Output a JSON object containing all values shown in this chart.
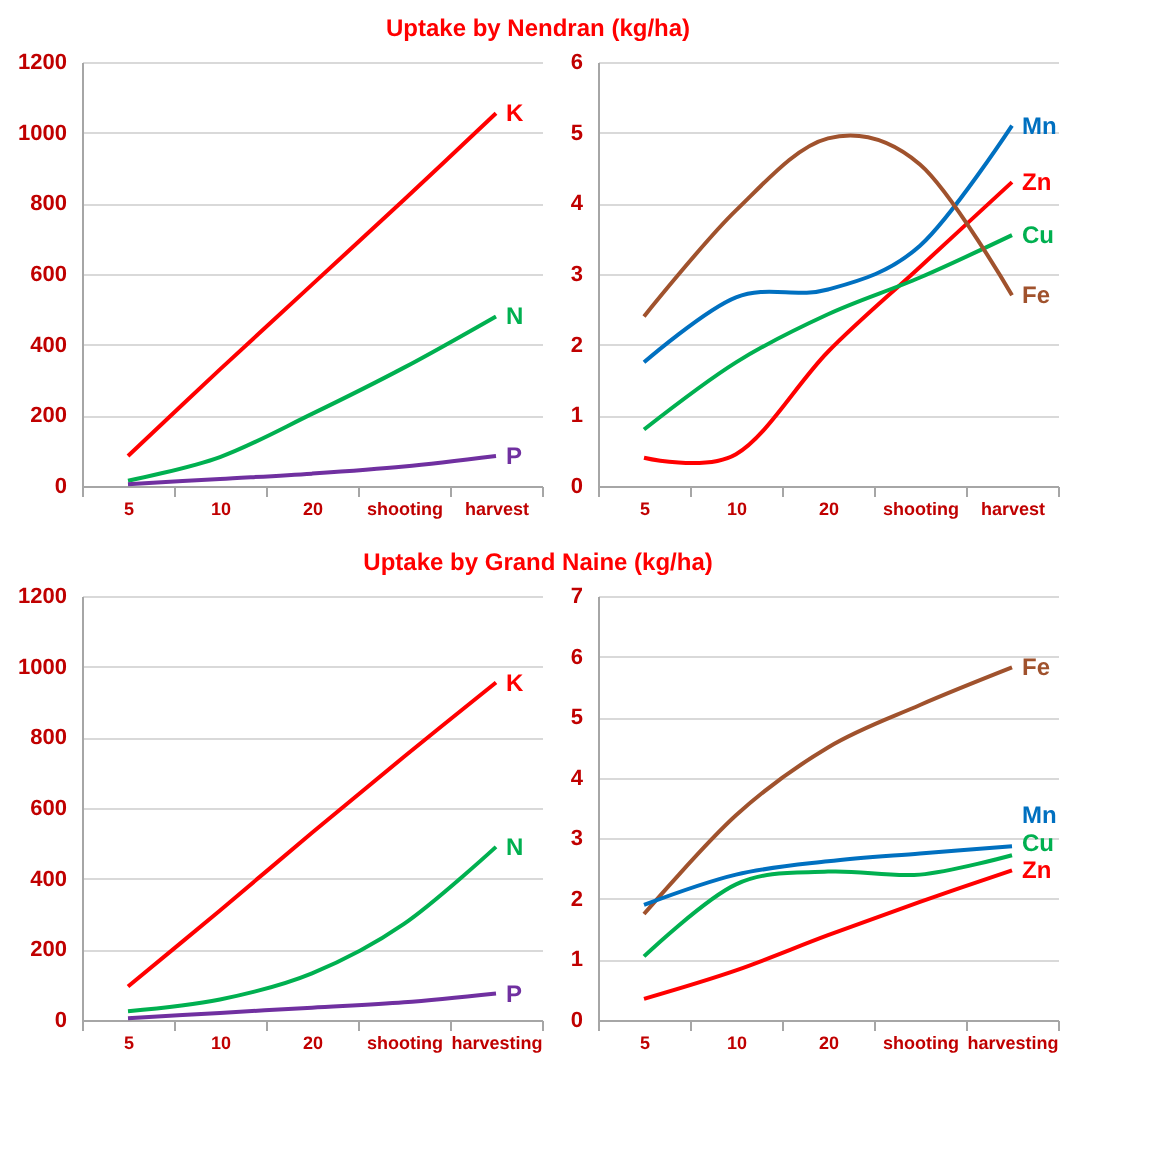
{
  "chart_data": [
    {
      "type": "line",
      "title": "Uptake by Nendran (kg/ha)",
      "categories": [
        "5",
        "10",
        "20",
        "shooting",
        "harvest"
      ],
      "ylim": [
        0,
        1200
      ],
      "yticks": [
        0,
        200,
        400,
        600,
        800,
        1000,
        1200
      ],
      "grid": "y",
      "series": [
        {
          "name": "K",
          "color": "#ff0000",
          "values": [
            85,
            330,
            570,
            810,
            1055
          ]
        },
        {
          "name": "N",
          "color": "#00b050",
          "values": [
            15,
            82,
            204,
            335,
            480
          ]
        },
        {
          "name": "P",
          "color": "#7030a0",
          "values": [
            5,
            20,
            35,
            55,
            85
          ]
        }
      ]
    },
    {
      "type": "line",
      "categories": [
        "5",
        "10",
        "20",
        "shooting",
        "harvest"
      ],
      "ylim": [
        0,
        6
      ],
      "yticks": [
        0,
        1,
        2,
        3,
        4,
        5,
        6
      ],
      "grid": "y",
      "series": [
        {
          "name": "Mn",
          "color": "#0070c0",
          "values": [
            1.75,
            2.67,
            2.78,
            3.4,
            5.1
          ]
        },
        {
          "name": "Zn",
          "color": "#ff0000",
          "values": [
            0.4,
            0.45,
            1.9,
            3.1,
            4.3
          ]
        },
        {
          "name": "Cu",
          "color": "#00b050",
          "values": [
            0.8,
            1.75,
            2.43,
            2.95,
            3.55
          ]
        },
        {
          "name": "Fe",
          "color": "#a0522d",
          "values": [
            2.4,
            3.9,
            4.92,
            4.55,
            2.7
          ]
        }
      ]
    },
    {
      "type": "line",
      "title": "Uptake by Grand Naine (kg/ha)",
      "categories": [
        "5",
        "10",
        "20",
        "shooting",
        "harvesting"
      ],
      "ylim": [
        0,
        1200
      ],
      "yticks": [
        0,
        200,
        400,
        600,
        800,
        1000,
        1200
      ],
      "grid": "y",
      "series": [
        {
          "name": "K",
          "color": "#ff0000",
          "values": [
            95,
            310,
            530,
            745,
            955
          ]
        },
        {
          "name": "N",
          "color": "#00b050",
          "values": [
            25,
            58,
            132,
            272,
            490
          ]
        },
        {
          "name": "P",
          "color": "#7030a0",
          "values": [
            5,
            20,
            35,
            50,
            75
          ]
        }
      ]
    },
    {
      "type": "line",
      "categories": [
        "5",
        "10",
        "20",
        "shooting",
        "harvesting"
      ],
      "ylim": [
        0,
        7
      ],
      "yticks": [
        0,
        1,
        2,
        3,
        4,
        5,
        6,
        7
      ],
      "grid": "y",
      "series": [
        {
          "name": "Fe",
          "color": "#a0522d",
          "values": [
            1.75,
            3.38,
            4.5,
            5.2,
            5.82
          ]
        },
        {
          "name": "Mn",
          "color": "#0070c0",
          "values": [
            1.9,
            2.4,
            2.62,
            2.75,
            2.87
          ]
        },
        {
          "name": "Cu",
          "color": "#00b050",
          "values": [
            1.05,
            2.24,
            2.45,
            2.4,
            2.72
          ]
        },
        {
          "name": "Zn",
          "color": "#ff0000",
          "values": [
            0.35,
            0.82,
            1.4,
            1.95,
            2.47
          ]
        }
      ]
    }
  ]
}
